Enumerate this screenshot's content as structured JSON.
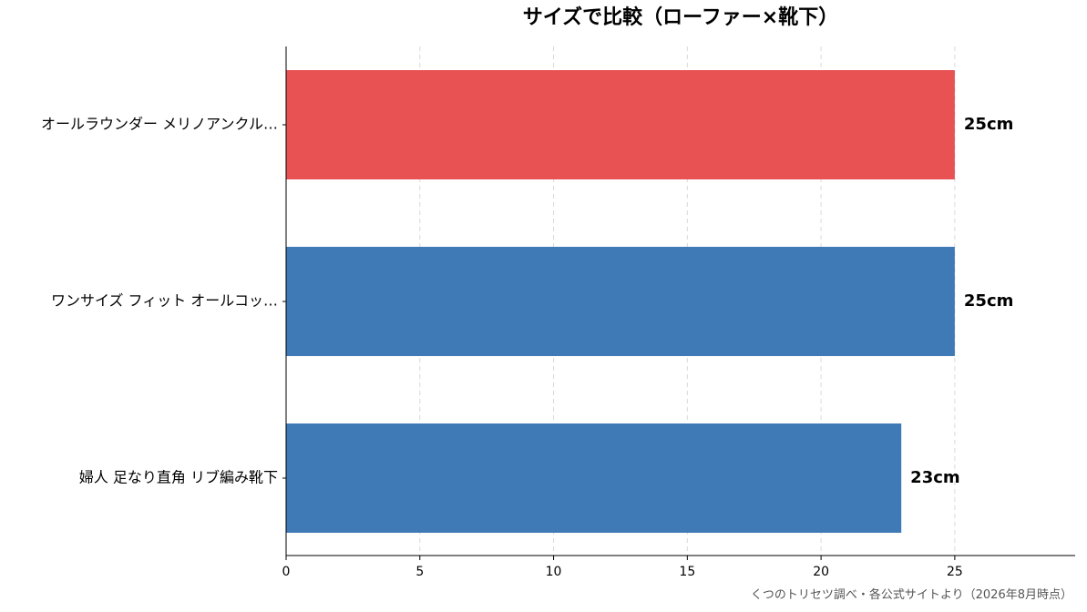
{
  "chart_data": {
    "type": "bar",
    "orientation": "horizontal",
    "title": "サイズで比較（ローファー×靴下）",
    "xlabel": "",
    "ylabel": "",
    "xlim": [
      0,
      29.5
    ],
    "xticks": [
      0,
      5,
      10,
      15,
      20,
      25
    ],
    "grid": "vertical dashed",
    "categories": [
      "オールラウンダー メリノアンクル…",
      "ワンサイズ フィット オールコッ…",
      "婦人 足なり直角 リブ編み靴下"
    ],
    "values": [
      25,
      25,
      23
    ],
    "value_labels": [
      "25cm",
      "25cm",
      "23cm"
    ],
    "colors": [
      "#e85252",
      "#3f7ab7",
      "#3f7ab7"
    ]
  },
  "source_note": "くつのトリセツ調べ・各公式サイトより（2026年8月時点）"
}
